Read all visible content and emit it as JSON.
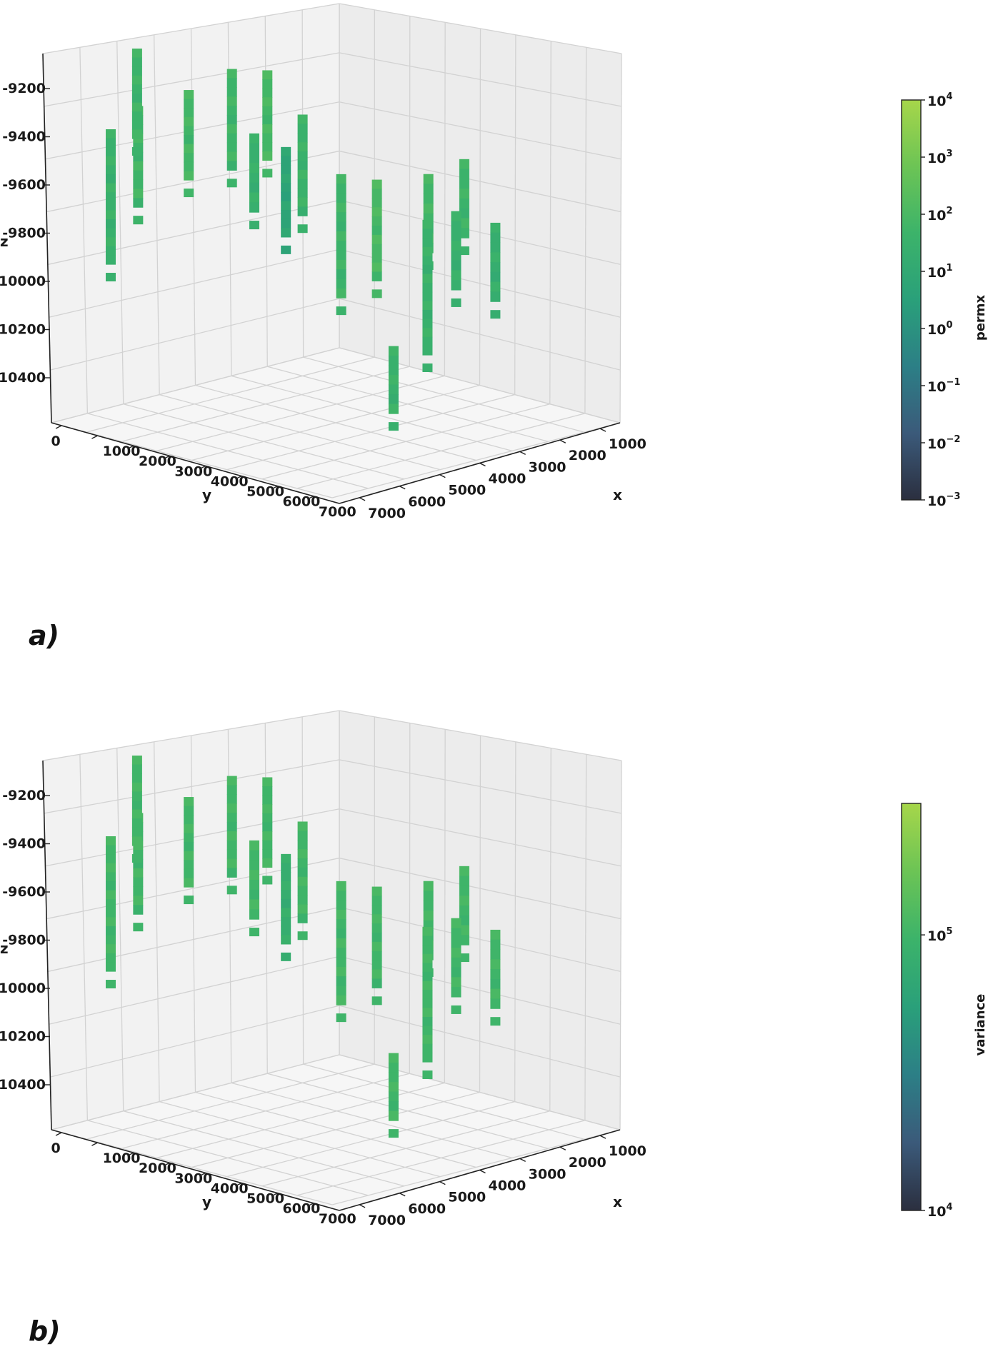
{
  "chart_data": [
    {
      "type": "scatter",
      "panel_label": "a)",
      "xlabel": "x",
      "ylabel": "y",
      "zlabel": "z",
      "x_ticks": [
        "1000",
        "2000",
        "3000",
        "4000",
        "5000",
        "6000",
        "7000"
      ],
      "y_ticks": [
        "0",
        "1000",
        "2000",
        "3000",
        "4000",
        "5000",
        "6000",
        "7000"
      ],
      "z_ticks": [
        "-9200",
        "-9400",
        "-9600",
        "-9800",
        "-10000",
        "-10200",
        "-10400"
      ],
      "colorbar": {
        "label": "permx",
        "scale": "log",
        "range": [
          0.001,
          10000
        ],
        "ticks": [
          {
            "base": "10",
            "exp": "4"
          },
          {
            "base": "10",
            "exp": "3"
          },
          {
            "base": "10",
            "exp": "2"
          },
          {
            "base": "10",
            "exp": "1"
          },
          {
            "base": "10",
            "exp": "0"
          },
          {
            "base": "10",
            "exp": "−1"
          },
          {
            "base": "10",
            "exp": "−2"
          },
          {
            "base": "10",
            "exp": "−3"
          }
        ],
        "colors": [
          "#2b2f3f",
          "#3b5a7a",
          "#2c7f86",
          "#2aa07a",
          "#3cb36a",
          "#6cc455",
          "#a6d64a"
        ]
      },
      "wells": [
        {
          "x": 6500,
          "y": 500,
          "z_top": -9250,
          "z_bottom": -9850,
          "permx": 30
        },
        {
          "x": 6200,
          "y": 900,
          "z_top": -9150,
          "z_bottom": -9600,
          "permx": 50
        },
        {
          "x": 6800,
          "y": 1500,
          "z_top": -8950,
          "z_bottom": -9350,
          "permx": 40
        },
        {
          "x": 5800,
          "y": 1800,
          "z_top": -9100,
          "z_bottom": -9500,
          "permx": 60
        },
        {
          "x": 5200,
          "y": 2300,
          "z_top": -9000,
          "z_bottom": -9450,
          "permx": 45
        },
        {
          "x": 4700,
          "y": 2700,
          "z_top": -9000,
          "z_bottom": -9400,
          "permx": 70
        },
        {
          "x": 4300,
          "y": 3200,
          "z_top": -9200,
          "z_bottom": -9650,
          "permx": 35
        },
        {
          "x": 5600,
          "y": 3300,
          "z_top": -9350,
          "z_bottom": -9700,
          "permx": 25
        },
        {
          "x": 5100,
          "y": 3600,
          "z_top": -9400,
          "z_bottom": -9800,
          "permx": 5
        },
        {
          "x": 4200,
          "y": 4100,
          "z_top": -9500,
          "z_bottom": -10050,
          "permx": 40
        },
        {
          "x": 3500,
          "y": 4300,
          "z_top": -9500,
          "z_bottom": -9950,
          "permx": 80
        },
        {
          "x": 2600,
          "y": 4700,
          "z_top": -9450,
          "z_bottom": -9800,
          "permx": 55
        },
        {
          "x": 3100,
          "y": 5200,
          "z_top": -9700,
          "z_bottom": -10300,
          "permx": 30
        },
        {
          "x": 1800,
          "y": 4800,
          "z_top": -9350,
          "z_bottom": -9700,
          "permx": 40
        },
        {
          "x": 5000,
          "y": 6300,
          "z_top": -10400,
          "z_bottom": -10700,
          "permx": 30
        },
        {
          "x": 2100,
          "y": 4900,
          "z_top": -9600,
          "z_bottom": -9950,
          "permx": 25
        },
        {
          "x": 1600,
          "y": 5400,
          "z_top": -9650,
          "z_bottom": -10000,
          "permx": 20
        }
      ]
    },
    {
      "type": "scatter",
      "panel_label": "b)",
      "xlabel": "x",
      "ylabel": "y",
      "zlabel": "z",
      "x_ticks": [
        "1000",
        "2000",
        "3000",
        "4000",
        "5000",
        "6000",
        "7000"
      ],
      "y_ticks": [
        "0",
        "1000",
        "2000",
        "3000",
        "4000",
        "5000",
        "6000",
        "7000"
      ],
      "z_ticks": [
        "-9200",
        "-9400",
        "-9600",
        "-9800",
        "-10000",
        "-10200",
        "-10400"
      ],
      "colorbar": {
        "label": "variance",
        "scale": "log",
        "range": [
          10000,
          300000
        ],
        "ticks": [
          {
            "base": "10",
            "exp": "5"
          },
          {
            "base": "10",
            "exp": "4"
          }
        ],
        "colors": [
          "#2b2f3f",
          "#3b5a7a",
          "#2c7f86",
          "#2aa07a",
          "#3cb36a",
          "#6cc455",
          "#a6d64a"
        ]
      },
      "wells": [
        {
          "x": 6500,
          "y": 500,
          "z_top": -9250,
          "z_bottom": -9850,
          "variance": 100000
        },
        {
          "x": 6200,
          "y": 900,
          "z_top": -9150,
          "z_bottom": -9600,
          "variance": 100000
        },
        {
          "x": 6800,
          "y": 1500,
          "z_top": -8950,
          "z_bottom": -9350,
          "variance": 100000
        },
        {
          "x": 5800,
          "y": 1800,
          "z_top": -9100,
          "z_bottom": -9500,
          "variance": 100000
        },
        {
          "x": 5200,
          "y": 2300,
          "z_top": -9000,
          "z_bottom": -9450,
          "variance": 100000
        },
        {
          "x": 4700,
          "y": 2700,
          "z_top": -9000,
          "z_bottom": -9400,
          "variance": 100000
        },
        {
          "x": 4300,
          "y": 3200,
          "z_top": -9200,
          "z_bottom": -9650,
          "variance": 100000
        },
        {
          "x": 5600,
          "y": 3300,
          "z_top": -9350,
          "z_bottom": -9700,
          "variance": 100000
        },
        {
          "x": 5100,
          "y": 3600,
          "z_top": -9400,
          "z_bottom": -9800,
          "variance": 80000
        },
        {
          "x": 4200,
          "y": 4100,
          "z_top": -9500,
          "z_bottom": -10050,
          "variance": 100000
        },
        {
          "x": 3500,
          "y": 4300,
          "z_top": -9500,
          "z_bottom": -9950,
          "variance": 100000
        },
        {
          "x": 2600,
          "y": 4700,
          "z_top": -9450,
          "z_bottom": -9800,
          "variance": 100000
        },
        {
          "x": 3100,
          "y": 5200,
          "z_top": -9700,
          "z_bottom": -10300,
          "variance": 100000
        },
        {
          "x": 1800,
          "y": 4800,
          "z_top": -9350,
          "z_bottom": -9700,
          "variance": 100000
        },
        {
          "x": 5000,
          "y": 6300,
          "z_top": -10400,
          "z_bottom": -10700,
          "variance": 100000
        },
        {
          "x": 2100,
          "y": 4900,
          "z_top": -9600,
          "z_bottom": -9950,
          "variance": 100000
        },
        {
          "x": 1600,
          "y": 5400,
          "z_top": -9650,
          "z_bottom": -10000,
          "variance": 100000
        }
      ]
    }
  ]
}
